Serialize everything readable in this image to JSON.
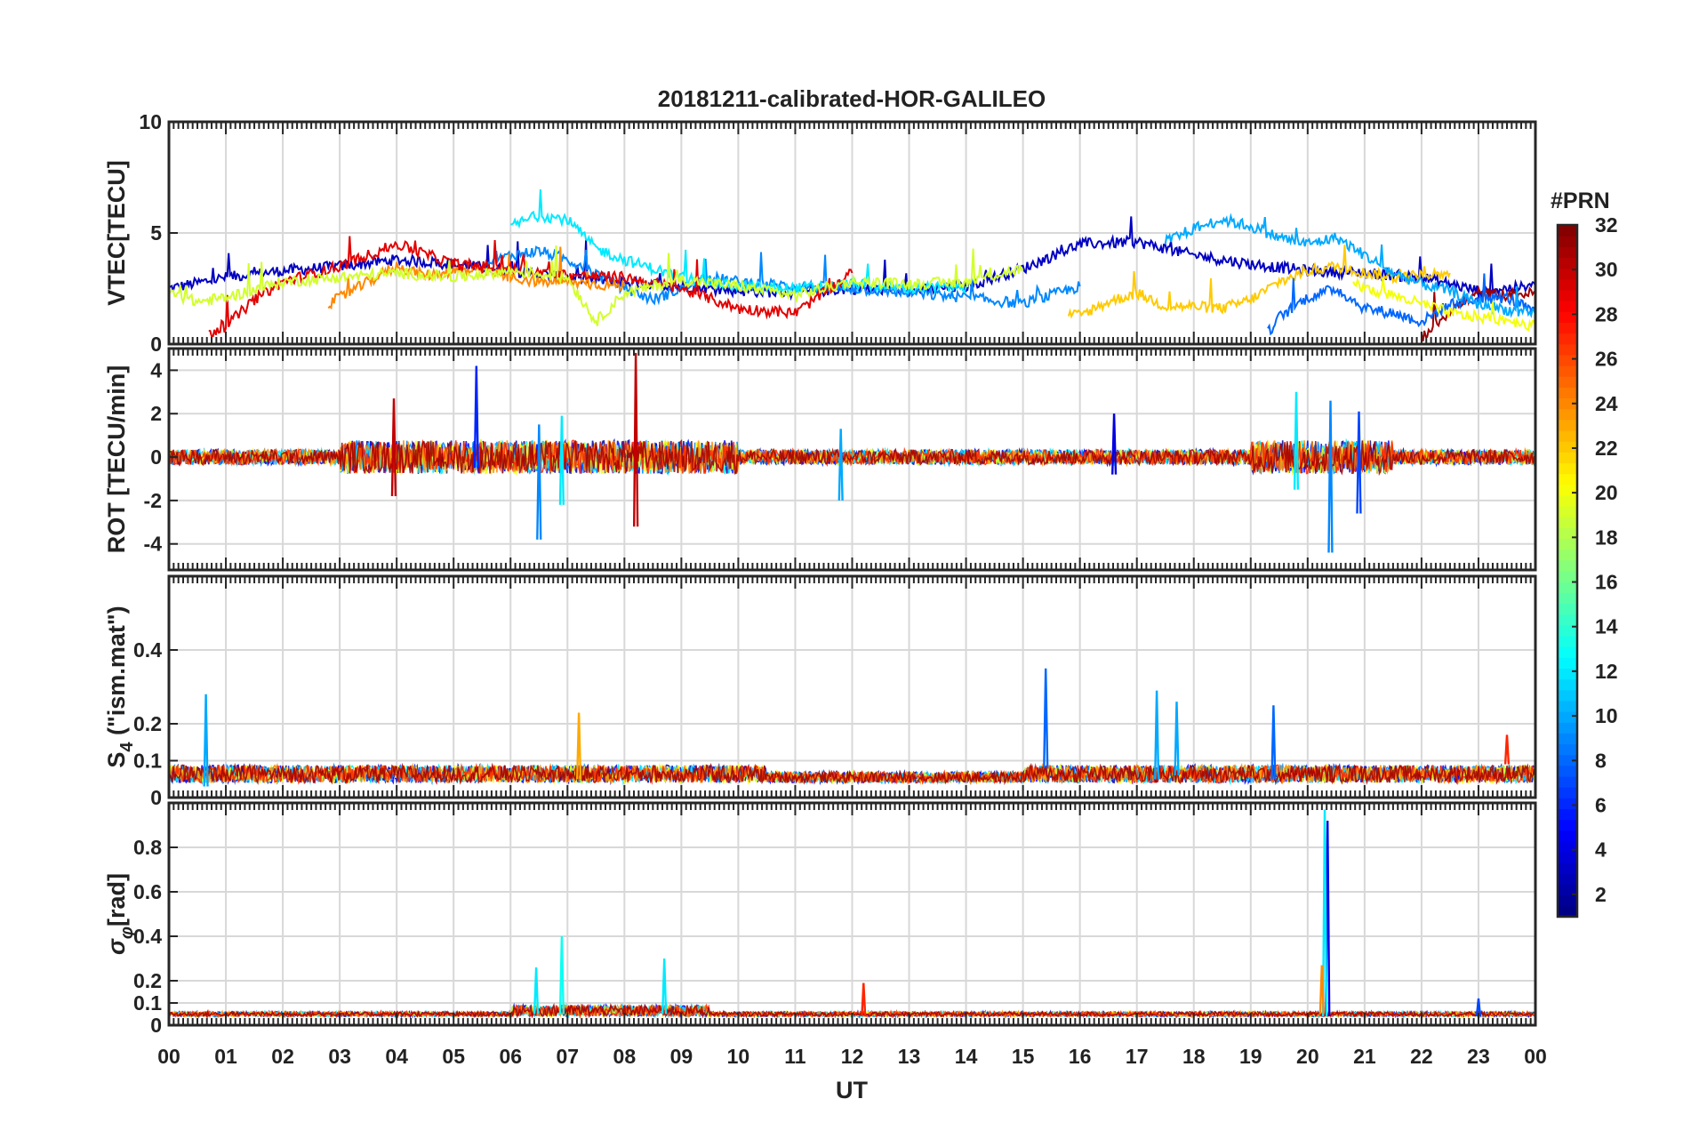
{
  "chart_data": {
    "type": "line",
    "title": "20181211-calibrated-HOR-GALILEO",
    "xlabel": "UT",
    "x_tick_labels": [
      "00",
      "01",
      "02",
      "03",
      "04",
      "05",
      "06",
      "07",
      "08",
      "09",
      "10",
      "11",
      "12",
      "13",
      "14",
      "15",
      "16",
      "17",
      "18",
      "19",
      "20",
      "21",
      "22",
      "23",
      "00"
    ],
    "xlim": [
      0,
      24
    ],
    "colorbar": {
      "title": "#PRN",
      "range": [
        1,
        32
      ],
      "tick_labels": [
        "2",
        "4",
        "6",
        "8",
        "10",
        "12",
        "14",
        "16",
        "18",
        "20",
        "22",
        "24",
        "26",
        "28",
        "30",
        "32"
      ],
      "colormap": "jet"
    },
    "panels": [
      {
        "key": "vtec",
        "ylabel": "VTEC[TECU]",
        "ylim": [
          0,
          10
        ],
        "ytick_values": [
          0,
          5,
          10
        ],
        "ytick_labels": [
          "0",
          "5",
          "10"
        ],
        "series": [
          {
            "prn": 3,
            "x": [
              0,
              1,
              2,
              3,
              4,
              5,
              6,
              7,
              8,
              9,
              10,
              11,
              12,
              13,
              14,
              15,
              16,
              17,
              18,
              19,
              20,
              21,
              22,
              23,
              24
            ],
            "values": [
              2.5,
              3.0,
              3.3,
              3.5,
              3.8,
              3.6,
              3.3,
              3.0,
              2.8,
              2.6,
              2.4,
              2.3,
              2.5,
              2.4,
              2.6,
              3.4,
              4.5,
              4.6,
              4.0,
              3.6,
              3.3,
              3.2,
              3.0,
              2.4,
              2.6
            ]
          },
          {
            "prn": 9,
            "x": [
              5.5,
              6,
              6.5,
              7,
              7.5,
              8,
              8.5,
              9,
              9.5,
              10,
              11,
              12,
              13,
              14,
              15,
              16
            ],
            "values": [
              3.5,
              4.0,
              4.2,
              3.8,
              3.2,
              2.5,
              2.0,
              2.5,
              3.0,
              2.8,
              2.6,
              2.5,
              2.3,
              2.1,
              1.8,
              2.6
            ]
          },
          {
            "prn": 12,
            "x": [
              6,
              6.5,
              7,
              7.5,
              8,
              9,
              10,
              11,
              12,
              13,
              14
            ],
            "values": [
              5.3,
              5.8,
              5.6,
              4.3,
              3.8,
              3.0,
              2.6,
              2.5,
              2.7,
              2.5,
              2.6
            ]
          },
          {
            "prn": 24,
            "x": [
              2.8,
              3.5,
              4,
              4.5,
              5,
              5.5,
              6,
              6.5,
              7,
              8
            ],
            "values": [
              1.8,
              2.8,
              3.5,
              3.1,
              3.3,
              3.3,
              3.0,
              2.8,
              2.8,
              2.6
            ]
          },
          {
            "prn": 29,
            "x": [
              0.7,
              1,
              1.5,
              2,
              3,
              4,
              5,
              6,
              7,
              8,
              9,
              10,
              11,
              12
            ],
            "values": [
              0.5,
              0.8,
              2.0,
              2.8,
              3.5,
              4.5,
              3.6,
              3.4,
              3.1,
              3.0,
              2.5,
              1.6,
              1.4,
              3.2
            ]
          },
          {
            "prn": 31,
            "x": [
              22,
              22.5,
              23,
              23.5,
              24
            ],
            "values": [
              0.3,
              1.5,
              2.3,
              2.2,
              2.3
            ]
          },
          {
            "prn": 19,
            "x": [
              0,
              0.5,
              1,
              2,
              3,
              4,
              5,
              6,
              7,
              7.5,
              8,
              9,
              10,
              11,
              12,
              13,
              14,
              15
            ],
            "values": [
              2.3,
              1.9,
              2.1,
              2.8,
              3.0,
              3.2,
              3.0,
              3.3,
              3.0,
              1.0,
              2.3,
              2.9,
              2.6,
              2.2,
              2.8,
              2.7,
              2.8,
              3.4
            ]
          },
          {
            "prn": 22,
            "x": [
              15.8,
              16,
              16.5,
              17,
              17.5,
              18,
              18.5,
              19,
              19.5,
              20,
              20.5,
              21,
              21.5,
              22,
              22.5
            ],
            "values": [
              1.3,
              1.3,
              1.9,
              2.3,
              1.7,
              1.7,
              1.6,
              2.0,
              2.8,
              3.3,
              3.5,
              3.2,
              3.0,
              3.1,
              3.2
            ]
          },
          {
            "prn": 8,
            "x": [
              19.3,
              19.5,
              20,
              20.5,
              21,
              21.5,
              22,
              22.5,
              23,
              23.5,
              24
            ],
            "values": [
              0.5,
              1.2,
              2.1,
              2.5,
              1.6,
              1.4,
              1.0,
              1.8,
              2.0,
              2.1,
              1.4
            ]
          },
          {
            "prn": 10,
            "x": [
              17.5,
              18,
              18.5,
              19,
              19.5,
              20,
              20.5,
              21,
              21.5,
              22,
              22.5,
              23,
              24
            ],
            "values": [
              4.6,
              5.2,
              5.6,
              5.3,
              4.8,
              4.5,
              4.8,
              4.0,
              3.2,
              2.7,
              2.4,
              1.8,
              1.3
            ]
          },
          {
            "prn": 20,
            "x": [
              20.8,
              21,
              21.5,
              22,
              22.5,
              23,
              23.5,
              24
            ],
            "values": [
              2.8,
              2.5,
              2.2,
              1.8,
              1.4,
              1.2,
              1.1,
              0.8
            ]
          }
        ]
      },
      {
        "key": "rot",
        "ylabel": "ROT [TECU/min]",
        "ylim": [
          -5.2,
          5
        ],
        "ytick_values": [
          -4,
          -2,
          0,
          2,
          4
        ],
        "ytick_labels": [
          "-4",
          "-2",
          "0",
          "2",
          "4"
        ],
        "spikes": [
          {
            "prn": 6,
            "x": 5.4,
            "low": -0.5,
            "high": 4.2
          },
          {
            "prn": 9,
            "x": 6.5,
            "low": -3.8,
            "high": 1.5
          },
          {
            "prn": 12,
            "x": 6.9,
            "low": -2.2,
            "high": 1.9
          },
          {
            "prn": 30,
            "x": 3.95,
            "low": -1.8,
            "high": 2.7
          },
          {
            "prn": 30,
            "x": 8.2,
            "low": -3.2,
            "high": 4.8
          },
          {
            "prn": 4,
            "x": 16.6,
            "low": -0.8,
            "high": 2.0
          },
          {
            "prn": 12,
            "x": 19.8,
            "low": -1.5,
            "high": 3.0
          },
          {
            "prn": 9,
            "x": 20.4,
            "low": -4.4,
            "high": 2.6
          },
          {
            "prn": 7,
            "x": 20.9,
            "low": -2.6,
            "high": 2.1
          },
          {
            "prn": 10,
            "x": 11.8,
            "low": -2.0,
            "high": 1.3
          }
        ]
      },
      {
        "key": "s4",
        "ylabel": "S4 (\"ism.mat\")",
        "ylabel_main": "S",
        "ylabel_sub": "4",
        "ylabel_rest": " (\"ism.mat\")",
        "ylim": [
          0,
          0.6
        ],
        "ytick_values": [
          0,
          0.1,
          0.2,
          0.4
        ],
        "ytick_labels": [
          "0",
          "0.1",
          "0.2",
          "0.4"
        ],
        "spikes": [
          {
            "prn": 10,
            "x": 0.65,
            "low": 0.03,
            "high": 0.28
          },
          {
            "prn": 8,
            "x": 15.4,
            "low": 0.08,
            "high": 0.35
          },
          {
            "prn": 10,
            "x": 17.35,
            "low": 0.05,
            "high": 0.29
          },
          {
            "prn": 23,
            "x": 7.2,
            "low": 0.05,
            "high": 0.23
          },
          {
            "prn": 8,
            "x": 19.4,
            "low": 0.05,
            "high": 0.25
          },
          {
            "prn": 10,
            "x": 17.7,
            "low": 0.06,
            "high": 0.26
          },
          {
            "prn": 27,
            "x": 23.5,
            "low": 0.09,
            "high": 0.17
          }
        ]
      },
      {
        "key": "sigphi",
        "ylabel": "σφ[rad]",
        "ylabel_main": "σ",
        "ylabel_sub": "φ",
        "ylabel_rest": "[rad]",
        "ylim": [
          0,
          1
        ],
        "ytick_values": [
          0,
          0.1,
          0.2,
          0.4,
          0.6,
          0.8
        ],
        "ytick_labels": [
          "0",
          "0.1",
          "0.2",
          "0.4",
          "0.6",
          "0.8"
        ],
        "spikes": [
          {
            "prn": 4,
            "x": 20.35,
            "low": 0.04,
            "high": 0.92
          },
          {
            "prn": 12,
            "x": 20.3,
            "low": 0.04,
            "high": 0.97
          },
          {
            "prn": 13,
            "x": 6.9,
            "low": 0.05,
            "high": 0.4
          },
          {
            "prn": 12,
            "x": 6.45,
            "low": 0.05,
            "high": 0.26
          },
          {
            "prn": 12,
            "x": 8.7,
            "low": 0.05,
            "high": 0.3
          },
          {
            "prn": 27,
            "x": 12.2,
            "low": 0.04,
            "high": 0.19
          },
          {
            "prn": 24,
            "x": 20.25,
            "low": 0.05,
            "high": 0.27
          },
          {
            "prn": 7,
            "x": 23.0,
            "low": 0.04,
            "high": 0.12
          }
        ]
      }
    ]
  }
}
